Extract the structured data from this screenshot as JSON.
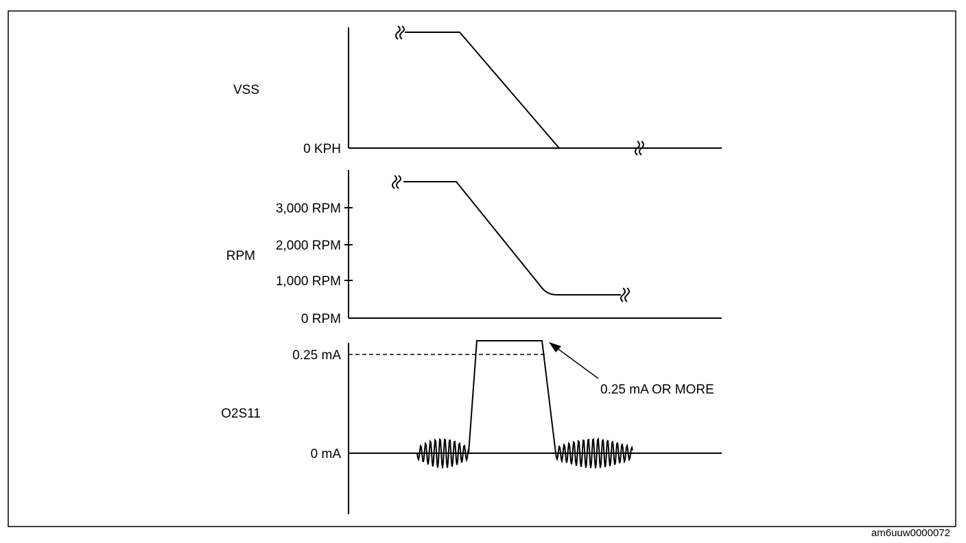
{
  "panels": [
    {
      "label": "VSS",
      "axis_labels": [
        "0 KPH"
      ]
    },
    {
      "label": "RPM",
      "axis_labels": [
        "3,000 RPM",
        "2,000 RPM",
        "1,000 RPM",
        "0 RPM"
      ]
    },
    {
      "label": "O2S11",
      "axis_labels": [
        "0.25 mA",
        "0 mA"
      ],
      "annotation": "0.25 mA OR MORE"
    }
  ],
  "figure_id": "am6uuw0000072"
}
